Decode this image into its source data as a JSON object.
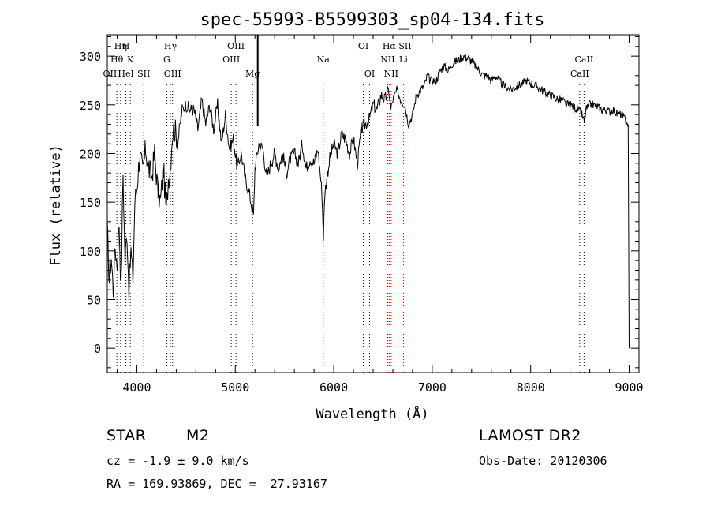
{
  "chart_data": {
    "type": "line",
    "title": "spec-55993-B5599303_sp04-134.fits",
    "xlabel": "Wavelength (Å)",
    "ylabel": "Flux (relative)",
    "xlim": [
      3700,
      9100
    ],
    "ylim": [
      -25,
      322
    ],
    "xticks": [
      4000,
      5000,
      6000,
      7000,
      8000,
      9000
    ],
    "yticks": [
      0,
      50,
      100,
      150,
      200,
      250,
      300
    ],
    "series": [
      {
        "x": [
          3700,
          3720,
          3740,
          3760,
          3780,
          3800,
          3820,
          3840,
          3860,
          3880,
          3900,
          3920,
          3940,
          3960,
          3980,
          4000,
          4030,
          4060,
          4090,
          4120,
          4150,
          4180,
          4210,
          4240,
          4270,
          4300,
          4320,
          4340,
          4360,
          4380,
          4420,
          4460,
          4500,
          4540,
          4580,
          4620,
          4660,
          4700,
          4740,
          4780,
          4820,
          4860,
          4900,
          4940,
          4980,
          5020,
          5060,
          5100,
          5140,
          5170,
          5185,
          5200,
          5215,
          5240,
          5280,
          5320,
          5360,
          5400,
          5440,
          5480,
          5520,
          5560,
          5600,
          5640,
          5680,
          5720,
          5760,
          5800,
          5840,
          5880,
          5895,
          5910,
          5930,
          5960,
          6000,
          6040,
          6080,
          6120,
          6160,
          6200,
          6240,
          6280,
          6320,
          6360,
          6400,
          6440,
          6480,
          6520,
          6560,
          6580,
          6600,
          6640,
          6680,
          6720,
          6760,
          6800,
          6840,
          6880,
          6920,
          6950,
          6980,
          7000,
          7040,
          7080,
          7120,
          7160,
          7200,
          7240,
          7280,
          7320,
          7360,
          7400,
          7440,
          7480,
          7520,
          7560,
          7600,
          7640,
          7680,
          7720,
          7760,
          7800,
          7840,
          7880,
          7920,
          7960,
          8000,
          8040,
          8080,
          8120,
          8160,
          8200,
          8240,
          8280,
          8320,
          8360,
          8400,
          8440,
          8480,
          8520,
          8545,
          8560,
          8600,
          8640,
          8680,
          8720,
          8760,
          8800,
          8840,
          8880,
          8920,
          8960,
          8990,
          9000
        ],
        "y": [
          120,
          70,
          95,
          60,
          105,
          85,
          130,
          60,
          180,
          90,
          120,
          60,
          100,
          70,
          150,
          165,
          200,
          180,
          205,
          185,
          175,
          200,
          165,
          150,
          185,
          140,
          175,
          185,
          220,
          225,
          215,
          245,
          250,
          245,
          245,
          225,
          255,
          230,
          250,
          225,
          250,
          210,
          240,
          205,
          215,
          185,
          200,
          175,
          160,
          145,
          135,
          185,
          195,
          210,
          205,
          175,
          190,
          200,
          185,
          200,
          180,
          195,
          200,
          190,
          210,
          185,
          195,
          190,
          205,
          160,
          115,
          160,
          175,
          195,
          210,
          200,
          220,
          215,
          200,
          215,
          190,
          225,
          230,
          235,
          250,
          245,
          260,
          255,
          265,
          245,
          255,
          265,
          255,
          250,
          230,
          240,
          260,
          265,
          270,
          280,
          275,
          275,
          275,
          285,
          290,
          285,
          292,
          295,
          297,
          300,
          298,
          295,
          290,
          285,
          280,
          280,
          275,
          280,
          275,
          270,
          268,
          265,
          268,
          270,
          272,
          275,
          272,
          270,
          268,
          265,
          262,
          260,
          258,
          255,
          255,
          250,
          250,
          248,
          245,
          240,
          232,
          245,
          250,
          250,
          248,
          245,
          245,
          243,
          245,
          240,
          240,
          235,
          230,
          0
        ]
      }
    ],
    "lines": [
      {
        "name": "Hη",
        "x": 3835,
        "color": "#000000",
        "row": 0
      },
      {
        "name": "Hθ",
        "x": 3797,
        "color": "#000000",
        "row": 1
      },
      {
        "name": "H",
        "x": 3889,
        "color": "#000000",
        "row": 0
      },
      {
        "name": "K",
        "x": 3934,
        "color": "#000000",
        "row": 1
      },
      {
        "name": "OII",
        "x": 3727,
        "color": "#000000",
        "row": 2
      },
      {
        "name": "HeI",
        "x": 3889,
        "color": "#000000",
        "row": 2
      },
      {
        "name": "SII",
        "x": 4070,
        "color": "#000000",
        "row": 2
      },
      {
        "name": "Hγ",
        "x": 4341,
        "color": "#000000",
        "row": 0
      },
      {
        "name": "G",
        "x": 4304,
        "color": "#000000",
        "row": 1
      },
      {
        "name": "OIII",
        "x": 4363,
        "color": "#000000",
        "row": 2
      },
      {
        "name": "OIII",
        "x": 5007,
        "color": "#000000",
        "row": 0
      },
      {
        "name": "OIII",
        "x": 4959,
        "color": "#000000",
        "row": 1
      },
      {
        "name": "Mg",
        "x": 5175,
        "color": "#000000",
        "row": 2
      },
      {
        "name": "Na",
        "x": 5893,
        "color": "#000000",
        "row": 1
      },
      {
        "name": "OI",
        "x": 6300,
        "color": "#000000",
        "row": 0
      },
      {
        "name": "OI",
        "x": 6364,
        "color": "#000000",
        "row": 2
      },
      {
        "name": "Hα",
        "x": 6563,
        "color": "#cc0000",
        "row": 0
      },
      {
        "name": "SII",
        "x": 6724,
        "color": "#cc0000",
        "row": 0
      },
      {
        "name": "NII",
        "x": 6548,
        "color": "#cc0000",
        "row": 1
      },
      {
        "name": "Li",
        "x": 6708,
        "color": "#cc0000",
        "row": 1
      },
      {
        "name": "NII",
        "x": 6583,
        "color": "#cc0000",
        "row": 2
      },
      {
        "name": "CaII",
        "x": 8542,
        "color": "#000000",
        "row": 1
      },
      {
        "name": "CaII",
        "x": 8498,
        "color": "#000000",
        "row": 2
      }
    ],
    "marker_line_x": 5228,
    "grid": false,
    "legend": "none"
  },
  "info": {
    "object_class": "STAR",
    "subclass": "M2",
    "survey": "LAMOST DR2",
    "redshift": "cz = -1.9 ± 9.0 km/s",
    "obs_date": "Obs-Date: 20120306",
    "coords": "RA = 169.93869, DEC =  27.93167"
  }
}
